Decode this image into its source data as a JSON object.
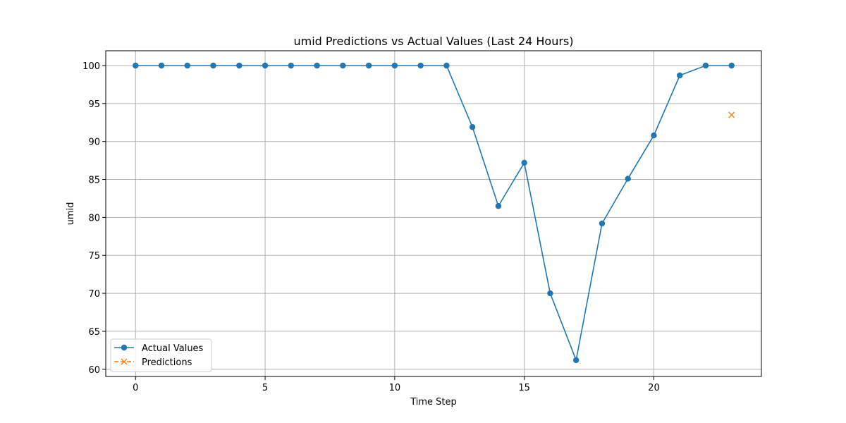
{
  "chart_data": {
    "type": "line",
    "title": "umid Predictions vs Actual Values (Last 24 Hours)",
    "xlabel": "Time Step",
    "ylabel": "umid",
    "xlim": [
      -1.15,
      24.15
    ],
    "ylim": [
      59.05,
      101.95
    ],
    "xticks": [
      0,
      5,
      10,
      15,
      20
    ],
    "yticks": [
      60,
      65,
      70,
      75,
      80,
      85,
      90,
      95,
      100
    ],
    "grid": true,
    "legend_position": "lower-left",
    "series": [
      {
        "name": "Actual Values",
        "color": "#1f77b4",
        "line_style": "solid",
        "marker": "circle",
        "x": [
          0,
          1,
          2,
          3,
          4,
          5,
          6,
          7,
          8,
          9,
          10,
          11,
          12,
          13,
          14,
          15,
          16,
          17,
          18,
          19,
          20,
          21,
          22,
          23
        ],
        "y": [
          100,
          100,
          100,
          100,
          100,
          100,
          100,
          100,
          100,
          100,
          100,
          100,
          100,
          91.9,
          81.5,
          87.2,
          70.0,
          61.2,
          79.2,
          85.1,
          90.8,
          98.7,
          100,
          100
        ]
      },
      {
        "name": "Predictions",
        "color": "#ff7f0e",
        "line_style": "dashed",
        "marker": "x",
        "x": [
          23
        ],
        "y": [
          93.5
        ]
      }
    ]
  }
}
